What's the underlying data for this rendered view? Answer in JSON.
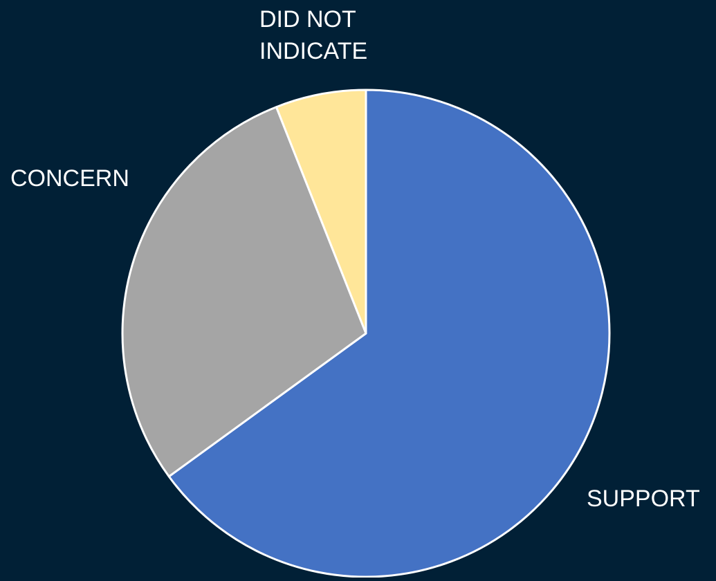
{
  "colors": {
    "background": "#012036",
    "slice_border": "#ffffff",
    "label_text": "#ffffff"
  },
  "chart_data": {
    "type": "pie",
    "title": "",
    "start_angle_deg": 0,
    "direction": "clockwise",
    "slices": [
      {
        "label": "SUPPORT",
        "label_lines": [
          "SUPPORT"
        ],
        "value": 65,
        "color": "#4472c4"
      },
      {
        "label": "CONCERN",
        "label_lines": [
          "CONCERN"
        ],
        "value": 29,
        "color": "#a5a5a5"
      },
      {
        "label": "DID NOT INDICATE",
        "label_lines": [
          "DID NOT",
          "INDICATE"
        ],
        "value": 6,
        "color": "#ffe699"
      }
    ]
  }
}
